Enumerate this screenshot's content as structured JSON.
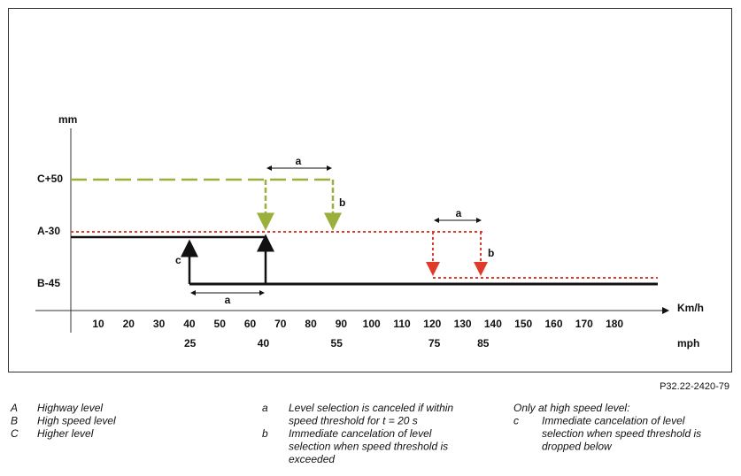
{
  "diagram": {
    "y_axis_unit": "mm",
    "x_axis_unit": "Km/h",
    "mph_unit": "mph",
    "levels": [
      "C+50",
      "A-30",
      "B-45"
    ],
    "kmh_ticks": [
      10,
      20,
      30,
      40,
      50,
      60,
      70,
      80,
      90,
      100,
      110,
      120,
      130,
      140,
      150,
      160,
      170,
      180
    ],
    "mph_ticks": [
      25,
      40,
      55,
      75,
      85
    ],
    "annotations": [
      "a",
      "b",
      "a",
      "b",
      "c",
      "a"
    ]
  },
  "figure_id": "P32.22-2420-79",
  "legend": {
    "columns": [
      {
        "items": [
          {
            "key": "A",
            "lines": [
              "Highway level"
            ]
          },
          {
            "key": "B",
            "lines": [
              "High speed level"
            ]
          },
          {
            "key": "C",
            "lines": [
              "Higher level"
            ]
          }
        ]
      },
      {
        "items": [
          {
            "key": "a",
            "lines": [
              "Level selection is canceled if within",
              "speed threshold for t = 20 s"
            ]
          },
          {
            "key": "b",
            "lines": [
              "Immediate cancelation of level",
              "selection when speed threshold is",
              "exceeded"
            ]
          }
        ]
      },
      {
        "heading": "Only at high speed level:",
        "items": [
          {
            "key": "c",
            "lines": [
              "Immediate cancelation of level",
              "selection when speed threshold is",
              "dropped below"
            ]
          }
        ]
      }
    ]
  }
}
